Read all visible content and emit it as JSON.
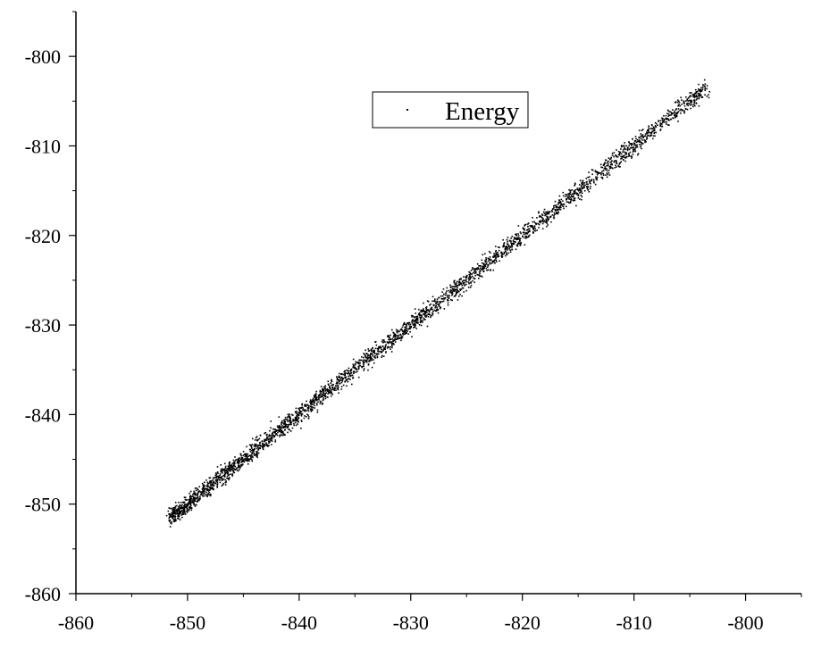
{
  "chart_data": {
    "type": "scatter",
    "title": "",
    "xlabel": "",
    "ylabel": "",
    "xlim": [
      -860,
      -795
    ],
    "ylim": [
      -860,
      -795
    ],
    "x_ticks": [
      -860,
      -850,
      -840,
      -830,
      -820,
      -810,
      -800
    ],
    "y_ticks": [
      -860,
      -850,
      -840,
      -830,
      -820,
      -810,
      -800
    ],
    "x_tick_labels": [
      "-860",
      "-850",
      "-840",
      "-830",
      "-820",
      "-810",
      "-800"
    ],
    "y_tick_labels": [
      "-860",
      "-850",
      "-840",
      "-830",
      "-820",
      "-810",
      "-800"
    ],
    "minor_ticks_per_major": 1,
    "grid": false,
    "legend_position": "top-center",
    "series": [
      {
        "name": "Energy",
        "color": "#000000",
        "marker": "dot",
        "point_count": 3000,
        "x_range": [
          -851.5,
          -803.5
        ],
        "relation": "y ≈ x",
        "scatter_spread": 0.45
      }
    ]
  }
}
